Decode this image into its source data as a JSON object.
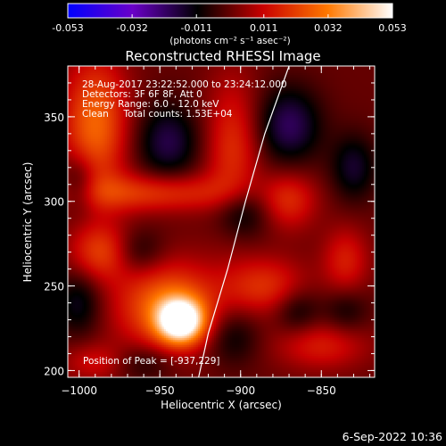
{
  "colorbar": {
    "tick_labels": [
      "-0.053",
      "-0.032",
      "-0.011",
      "0.011",
      "0.032",
      "0.053"
    ],
    "tick_values": [
      -0.053,
      -0.032,
      -0.011,
      0.011,
      0.032,
      0.053
    ],
    "range": [
      -0.053,
      0.053
    ],
    "colors": [
      "#0000ff",
      "#6a00c8",
      "#000000",
      "#c80000",
      "#ff7800",
      "#ffffff"
    ],
    "units_label": "(photons cm⁻² s⁻¹ asec⁻²)"
  },
  "plot": {
    "title": "Reconstructed RHESSI Image",
    "info_lines": [
      "28-Aug-2017 23:22:52.000 to 23:24:12.000",
      "Detectors: 3F 6F 8F, Att 0",
      "Energy Range: 6.0 - 12.0 keV",
      "Clean     Total counts: 1.53E+04"
    ],
    "peak_label": "Position of Peak = [-937,229]",
    "footer_date": "6-Sep-2022 10:36"
  },
  "chart_data": {
    "type": "heatmap",
    "title": "Reconstructed RHESSI Image",
    "xlabel": "Heliocentric X (arcsec)",
    "ylabel": "Heliocentric Y (arcsec)",
    "xlim": [
      -1007,
      -817
    ],
    "ylim": [
      196,
      380
    ],
    "x_ticks": [
      -1000,
      -950,
      -900,
      -850
    ],
    "x_tick_labels": [
      "−1000",
      "−950",
      "−900",
      "−850"
    ],
    "y_ticks": [
      200,
      250,
      300,
      350
    ],
    "y_tick_labels": [
      "200",
      "250",
      "300",
      "350"
    ],
    "peak": {
      "x": -937,
      "y": 229
    },
    "sources": [
      {
        "x": -937,
        "y": 229,
        "amp": 0.053,
        "sx": 10,
        "sy": 9
      },
      {
        "x": -945,
        "y": 238,
        "amp": 0.03,
        "sx": 22,
        "sy": 18
      },
      {
        "x": -990,
        "y": 345,
        "amp": 0.028,
        "sx": 14,
        "sy": 28
      },
      {
        "x": -985,
        "y": 270,
        "amp": 0.022,
        "sx": 14,
        "sy": 12
      },
      {
        "x": -955,
        "y": 305,
        "amp": 0.02,
        "sx": 40,
        "sy": 8
      },
      {
        "x": -905,
        "y": 330,
        "amp": 0.018,
        "sx": 12,
        "sy": 30
      },
      {
        "x": -870,
        "y": 300,
        "amp": 0.016,
        "sx": 12,
        "sy": 12
      },
      {
        "x": -885,
        "y": 250,
        "amp": 0.018,
        "sx": 18,
        "sy": 12
      },
      {
        "x": -835,
        "y": 265,
        "amp": 0.015,
        "sx": 10,
        "sy": 14
      },
      {
        "x": -850,
        "y": 215,
        "amp": 0.015,
        "sx": 20,
        "sy": 10
      },
      {
        "x": -990,
        "y": 205,
        "amp": 0.012,
        "sx": 14,
        "sy": 8
      },
      {
        "x": -945,
        "y": 335,
        "amp": -0.018,
        "sx": 14,
        "sy": 16
      },
      {
        "x": -870,
        "y": 345,
        "amp": -0.02,
        "sx": 14,
        "sy": 16
      },
      {
        "x": -900,
        "y": 295,
        "amp": -0.018,
        "sx": 12,
        "sy": 12
      },
      {
        "x": -1000,
        "y": 310,
        "amp": -0.016,
        "sx": 8,
        "sy": 12
      },
      {
        "x": -830,
        "y": 320,
        "amp": -0.015,
        "sx": 10,
        "sy": 14
      },
      {
        "x": -965,
        "y": 270,
        "amp": -0.014,
        "sx": 12,
        "sy": 10
      },
      {
        "x": -1000,
        "y": 240,
        "amp": -0.014,
        "sx": 10,
        "sy": 14
      },
      {
        "x": -960,
        "y": 205,
        "amp": -0.01,
        "sx": 14,
        "sy": 8
      },
      {
        "x": -905,
        "y": 220,
        "amp": -0.012,
        "sx": 12,
        "sy": 12
      },
      {
        "x": -865,
        "y": 235,
        "amp": -0.012,
        "sx": 10,
        "sy": 10
      },
      {
        "x": -835,
        "y": 235,
        "amp": -0.01,
        "sx": 10,
        "sy": 10
      }
    ],
    "limb_curve": [
      [
        -870,
        380
      ],
      [
        -885,
        340
      ],
      [
        -897,
        300
      ],
      [
        -908,
        260
      ],
      [
        -920,
        222
      ],
      [
        -926,
        196
      ]
    ]
  }
}
